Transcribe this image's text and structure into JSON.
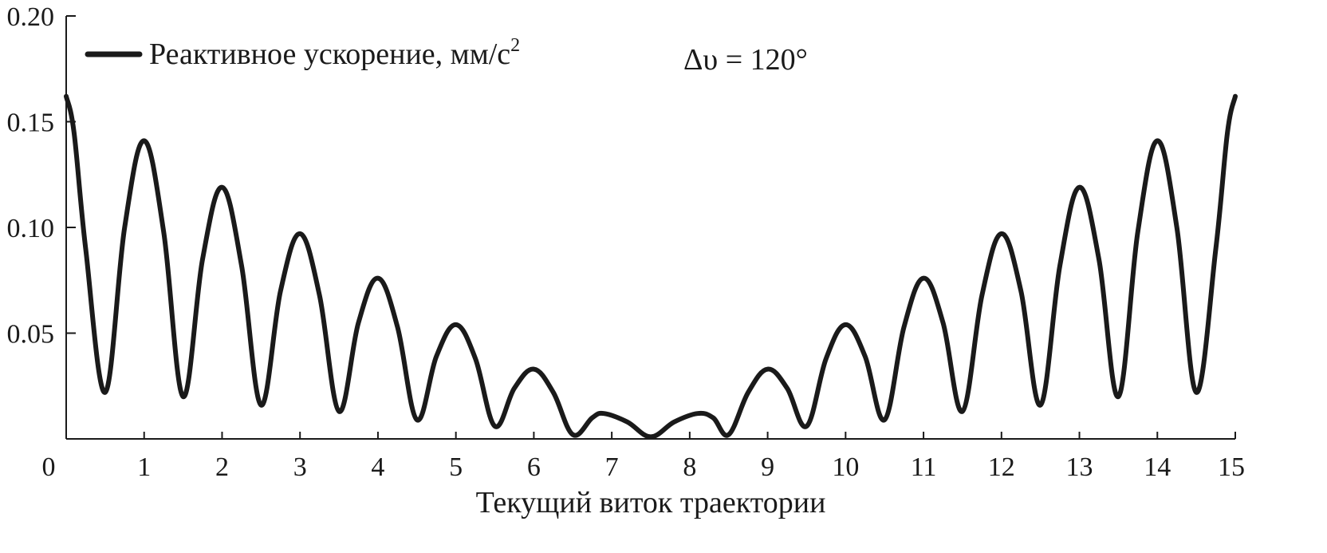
{
  "chart_data": {
    "type": "line",
    "title": "",
    "xlabel": "Текущий виток траектории",
    "ylabel": "",
    "xlim": [
      0,
      15
    ],
    "ylim": [
      0,
      0.2
    ],
    "x_ticks": [
      "0",
      "1",
      "2",
      "3",
      "4",
      "5",
      "6",
      "7",
      "8",
      "9",
      "10",
      "11",
      "12",
      "13",
      "14",
      "15"
    ],
    "y_ticks": [
      "0.05",
      "0.10",
      "0.15",
      "0.20"
    ],
    "grid": false,
    "legend_position": "top-left",
    "annotation": "Δυ = 120°",
    "series": [
      {
        "name": "Реактивное ускорение, мм/с",
        "name_superscript": "2",
        "color": "#1a1a1a",
        "x": [
          0,
          0.1,
          0.25,
          0.5,
          0.75,
          1,
          1.25,
          1.5,
          1.75,
          2,
          2.25,
          2.5,
          2.75,
          3,
          3.25,
          3.5,
          3.75,
          4,
          4.25,
          4.5,
          4.75,
          5,
          5.25,
          5.5,
          5.75,
          6,
          6.25,
          6.5,
          6.75,
          6.9,
          7.2,
          7.5,
          7.8,
          8.1,
          8.3,
          8.5,
          8.75,
          9,
          9.25,
          9.5,
          9.75,
          10,
          10.25,
          10.5,
          10.75,
          11,
          11.25,
          11.5,
          11.75,
          12,
          12.25,
          12.5,
          12.75,
          13,
          13.25,
          13.5,
          13.75,
          14,
          14.25,
          14.5,
          14.75,
          14.9,
          15
        ],
        "y": [
          0.162,
          0.145,
          0.09,
          0.022,
          0.1,
          0.141,
          0.098,
          0.02,
          0.085,
          0.119,
          0.082,
          0.016,
          0.07,
          0.097,
          0.068,
          0.013,
          0.055,
          0.076,
          0.053,
          0.009,
          0.039,
          0.054,
          0.038,
          0.006,
          0.024,
          0.033,
          0.022,
          0.002,
          0.01,
          0.012,
          0.008,
          0.001,
          0.008,
          0.012,
          0.01,
          0.002,
          0.022,
          0.033,
          0.024,
          0.006,
          0.038,
          0.054,
          0.039,
          0.009,
          0.053,
          0.076,
          0.055,
          0.013,
          0.068,
          0.097,
          0.07,
          0.016,
          0.082,
          0.119,
          0.085,
          0.02,
          0.098,
          0.141,
          0.1,
          0.022,
          0.09,
          0.145,
          0.162
        ]
      }
    ]
  }
}
